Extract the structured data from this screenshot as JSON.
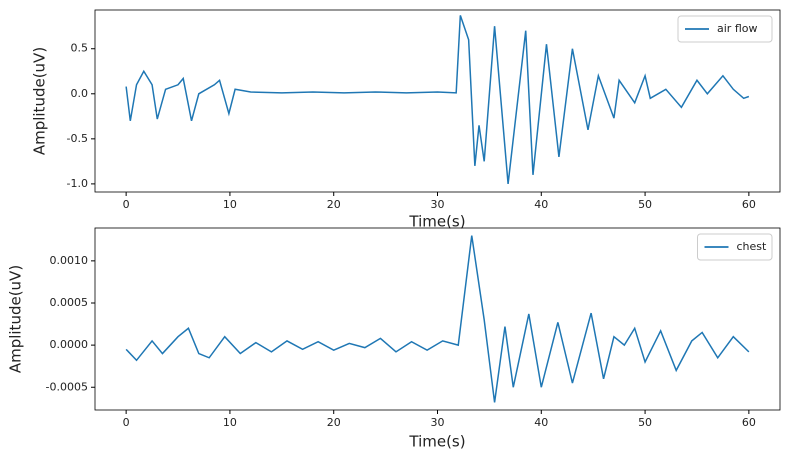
{
  "chart_data": [
    {
      "type": "line",
      "xlabel": "Time(s)",
      "ylabel": "Amplitude(uV)",
      "xlim": [
        -3,
        63
      ],
      "ylim": [
        -1.09,
        0.93
      ],
      "xticks": [
        0,
        10,
        20,
        30,
        40,
        50,
        60
      ],
      "yticks": [
        {
          "value": -1.0,
          "label": "-1.0"
        },
        -0.5,
        {
          "value": 0,
          "label": "0.0"
        },
        0.5
      ],
      "legend": "upper right",
      "series": [
        {
          "name": "air flow",
          "color": "#1f77b4",
          "x": [
            0,
            0.4,
            1,
            1.7,
            2.5,
            3,
            3.8,
            5,
            5.5,
            6.3,
            7,
            8.5,
            9,
            9.9,
            10.5,
            12,
            15,
            18,
            21,
            24,
            27,
            30,
            31.8,
            32.2,
            33,
            33.6,
            34,
            34.5,
            35.5,
            36.8,
            38.5,
            39.2,
            40.5,
            41.7,
            43,
            44.5,
            45.5,
            47,
            47.5,
            49,
            50,
            50.5,
            52,
            53.5,
            55,
            56,
            57.5,
            58.5,
            59.5,
            60
          ],
          "values": [
            0.08,
            -0.3,
            0.1,
            0.25,
            0.1,
            -0.28,
            0.05,
            0.1,
            0.17,
            -0.3,
            0.0,
            0.1,
            0.15,
            -0.22,
            0.05,
            0.02,
            0.01,
            0.02,
            0.01,
            0.02,
            0.01,
            0.02,
            0.01,
            0.87,
            0.6,
            -0.8,
            -0.35,
            -0.75,
            0.75,
            -1.0,
            0.7,
            -0.9,
            0.55,
            -0.7,
            0.5,
            -0.4,
            0.2,
            -0.27,
            0.15,
            -0.1,
            0.2,
            -0.05,
            0.05,
            -0.15,
            0.15,
            0.0,
            0.2,
            0.05,
            -0.05,
            -0.03
          ]
        }
      ]
    },
    {
      "type": "line",
      "xlabel": "Time(s)",
      "ylabel": "Amplitude(uV)",
      "xlim": [
        -3,
        63
      ],
      "ylim": [
        -0.00077,
        0.00139
      ],
      "xticks": [
        0,
        10,
        20,
        30,
        40,
        50,
        60
      ],
      "yticks": [
        -0.0005,
        {
          "value": 0,
          "label": "0.0000"
        },
        0.0005,
        {
          "value": 0.001,
          "label": "0.0010"
        }
      ],
      "legend": "upper right",
      "series": [
        {
          "name": "chest",
          "color": "#1f77b4",
          "x": [
            0,
            1,
            2.5,
            3.5,
            5,
            6,
            7,
            8,
            9.5,
            11,
            12.5,
            14,
            15.5,
            17,
            18.5,
            20,
            21.5,
            23,
            24.5,
            26,
            27.5,
            29,
            30.5,
            32,
            33.3,
            34.5,
            35.5,
            36.5,
            37.3,
            38.8,
            40,
            41.6,
            43,
            44.8,
            46,
            47,
            48,
            49,
            50,
            51.5,
            53,
            54.5,
            55.5,
            57,
            58.5,
            60
          ],
          "values": [
            -5e-05,
            -0.00018,
            5e-05,
            -0.0001,
            0.0001,
            0.0002,
            -0.0001,
            -0.00015,
            0.0001,
            -0.0001,
            3e-05,
            -8e-05,
            5e-05,
            -5e-05,
            4e-05,
            -6e-05,
            2e-05,
            -3e-05,
            8e-05,
            -8e-05,
            4e-05,
            -6e-05,
            5e-05,
            0.0,
            0.0013,
            0.0003,
            -0.00068,
            0.00022,
            -0.0005,
            0.00037,
            -0.0005,
            0.00027,
            -0.00045,
            0.00038,
            -0.0004,
            0.0001,
            0.0,
            0.0002,
            -0.0002,
            0.00017,
            -0.0003,
            5e-05,
            0.00015,
            -0.00015,
            0.0001,
            -8e-05
          ]
        }
      ]
    }
  ]
}
